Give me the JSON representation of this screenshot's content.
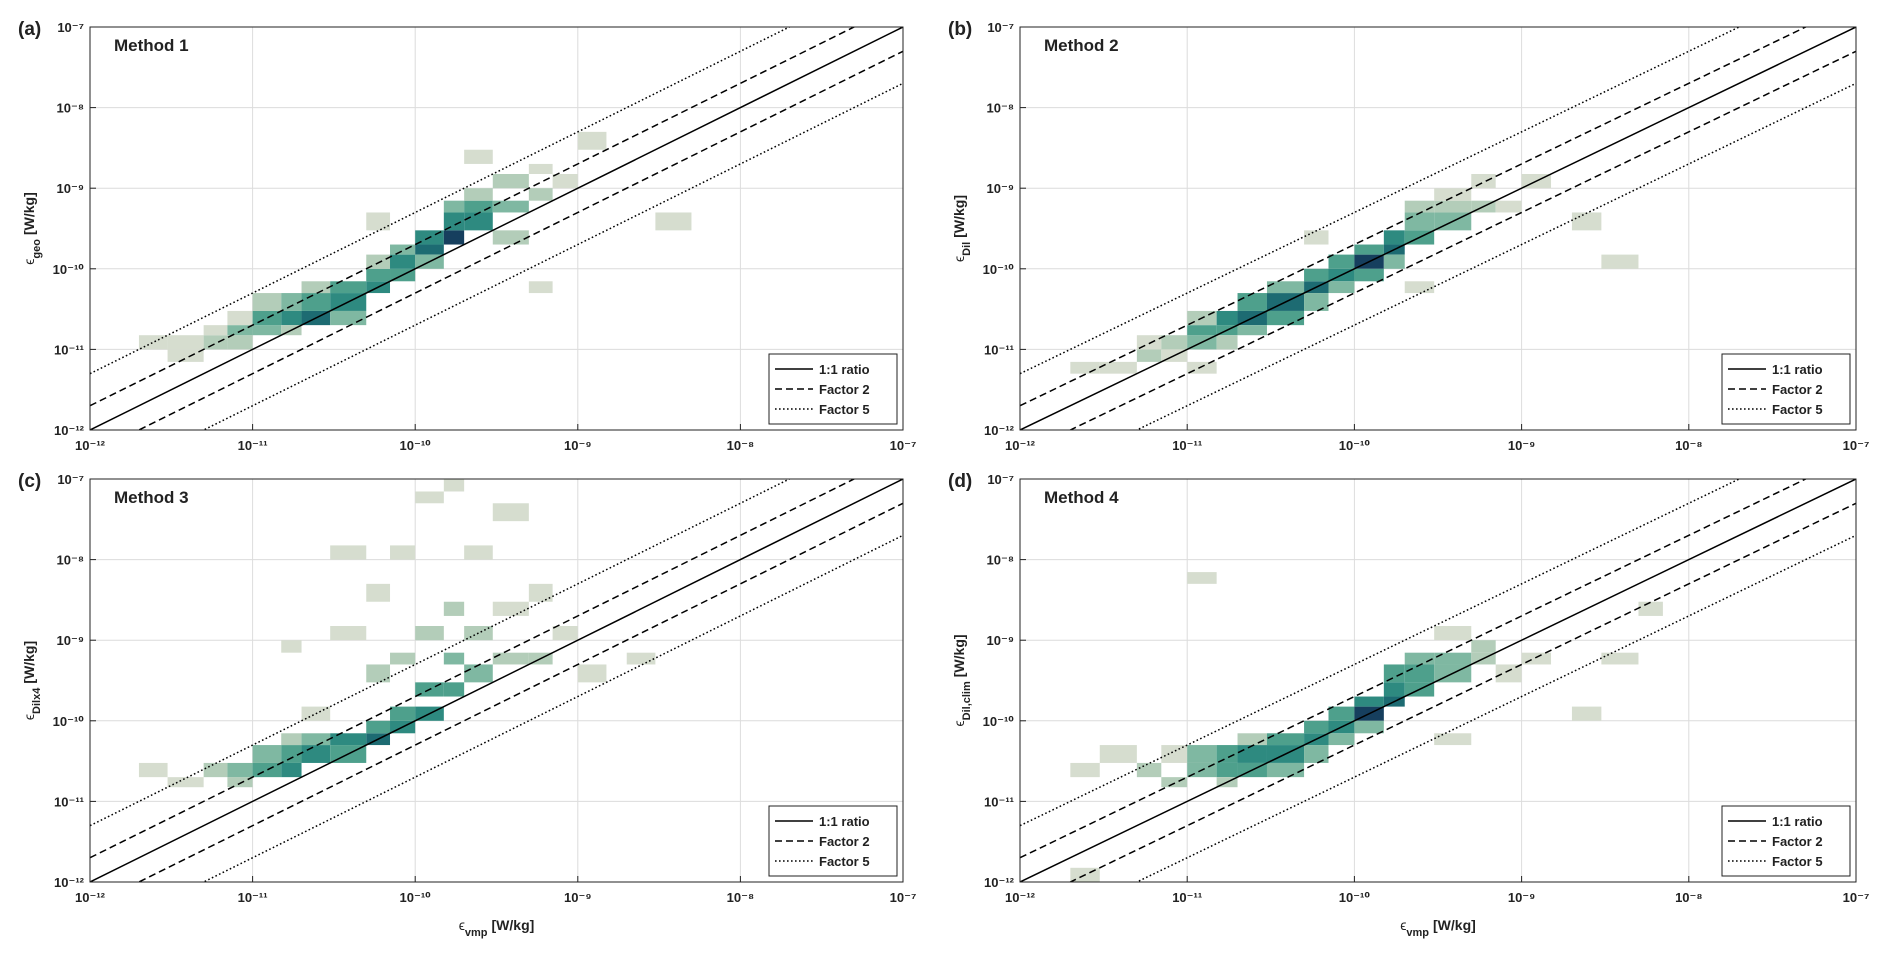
{
  "chart_data": [
    {
      "type": "hist2d",
      "panel_label": "(a)",
      "title": "Method 1",
      "ylabel": {
        "symbol": "ϵ",
        "subscript": "geo",
        "unit": "[W/kg]"
      },
      "xlim": [
        1e-12,
        1e-07
      ],
      "ylim": [
        1e-12,
        1e-07
      ],
      "log_x": true,
      "log_y": true,
      "grid": true,
      "legend": "lower right",
      "xticks": [
        {
          "value": 1e-12,
          "label": "10⁻¹²"
        },
        {
          "value": 1e-11,
          "label": "10⁻¹¹"
        },
        {
          "value": 1e-10,
          "label": "10⁻¹⁰"
        },
        {
          "value": 1e-09,
          "label": "10⁻⁹"
        },
        {
          "value": 1e-08,
          "label": "10⁻⁸"
        },
        {
          "value": 1e-07,
          "label": "10⁻⁷"
        }
      ],
      "yticks": [
        {
          "value": 1e-12,
          "label": "10⁻¹²"
        },
        {
          "value": 1e-11,
          "label": "10⁻¹¹"
        },
        {
          "value": 1e-10,
          "label": "10⁻¹⁰"
        },
        {
          "value": 1e-09,
          "label": "10⁻⁹"
        },
        {
          "value": 1e-08,
          "label": "10⁻⁸"
        },
        {
          "value": 1e-07,
          "label": "10⁻⁷"
        }
      ],
      "bin_edges": [
        1e-12,
        1.5e-12,
        2e-12,
        3e-12,
        5e-12,
        7e-12,
        1e-11,
        1.5e-11,
        2e-11,
        3e-11,
        5e-11,
        7e-11,
        1e-10,
        1.5e-10,
        2e-10,
        3e-10,
        5e-10,
        7e-10,
        1e-09,
        1.5e-09,
        2e-09,
        3e-09,
        5e-09,
        7e-09,
        1e-08,
        1.5e-08,
        2e-08,
        3e-08,
        5e-08,
        7e-08,
        1e-07
      ],
      "cells": {
        "x": [
          3e-12,
          3e-12,
          5e-12,
          5e-12,
          7e-12,
          7e-12,
          7e-12,
          1e-11,
          1e-11,
          1e-11,
          1.5e-11,
          1.5e-11,
          1.5e-11,
          2e-11,
          2e-11,
          2e-11,
          3e-11,
          3e-11,
          3e-11,
          5e-11,
          5e-11,
          5e-11,
          7e-11,
          7e-11,
          7e-11,
          1e-10,
          1e-10,
          1e-10,
          1.5e-10,
          1.5e-10,
          1.5e-10,
          2e-10,
          2e-10,
          2e-10,
          3e-10,
          3e-10,
          3e-10,
          5e-10,
          5e-10,
          7e-10,
          1e-09,
          2e-10,
          5e-11,
          5e-10,
          3e-09,
          2e-12
        ],
        "y": [
          7e-12,
          1e-11,
          1e-11,
          1.5e-11,
          1e-11,
          1.5e-11,
          2e-11,
          1.5e-11,
          2e-11,
          3e-11,
          2e-11,
          3e-11,
          1.5e-11,
          2e-11,
          3e-11,
          5e-11,
          3e-11,
          5e-11,
          2e-11,
          5e-11,
          7e-11,
          1e-10,
          7e-11,
          1e-10,
          1.5e-10,
          1.5e-10,
          2e-10,
          1e-10,
          2e-10,
          3e-10,
          5e-10,
          3e-10,
          5e-10,
          7e-10,
          5e-10,
          1e-09,
          2e-10,
          7e-10,
          1.5e-09,
          1e-09,
          3e-09,
          2e-09,
          3e-10,
          5e-11,
          3e-10,
          1e-11
        ],
        "counts": [
          1,
          1,
          2,
          1,
          2,
          3,
          1,
          3,
          4,
          2,
          5,
          3,
          2,
          6,
          4,
          2,
          5,
          4,
          3,
          5,
          4,
          2,
          4,
          5,
          3,
          6,
          5,
          3,
          7,
          5,
          3,
          5,
          4,
          2,
          3,
          2,
          2,
          2,
          1,
          1,
          1,
          1,
          1,
          1,
          1,
          1
        ]
      },
      "reference_lines": [
        {
          "name": "1:1 ratio",
          "style": "solid",
          "factors": [
            1
          ]
        },
        {
          "name": "Factor 2",
          "style": "dashed",
          "factors": [
            2,
            0.5
          ]
        },
        {
          "name": "Factor 5",
          "style": "dotted",
          "factors": [
            5,
            0.2
          ]
        }
      ]
    },
    {
      "type": "hist2d",
      "panel_label": "(b)",
      "title": "Method 2",
      "ylabel": {
        "symbol": "ϵ",
        "subscript": "Dil",
        "unit": "[W/kg]"
      },
      "xlim": [
        1e-12,
        1e-07
      ],
      "ylim": [
        1e-12,
        1e-07
      ],
      "log_x": true,
      "log_y": true,
      "grid": true,
      "legend": "lower right",
      "xticks": [
        {
          "value": 1e-12,
          "label": "10⁻¹²"
        },
        {
          "value": 1e-11,
          "label": "10⁻¹¹"
        },
        {
          "value": 1e-10,
          "label": "10⁻¹⁰"
        },
        {
          "value": 1e-09,
          "label": "10⁻⁹"
        },
        {
          "value": 1e-08,
          "label": "10⁻⁸"
        },
        {
          "value": 1e-07,
          "label": "10⁻⁷"
        }
      ],
      "yticks": [
        {
          "value": 1e-12,
          "label": "10⁻¹²"
        },
        {
          "value": 1e-11,
          "label": "10⁻¹¹"
        },
        {
          "value": 1e-10,
          "label": "10⁻¹⁰"
        },
        {
          "value": 1e-09,
          "label": "10⁻⁹"
        },
        {
          "value": 1e-08,
          "label": "10⁻⁸"
        },
        {
          "value": 1e-07,
          "label": "10⁻⁷"
        }
      ],
      "bin_edges": [
        1e-12,
        1.5e-12,
        2e-12,
        3e-12,
        5e-12,
        7e-12,
        1e-11,
        1.5e-11,
        2e-11,
        3e-11,
        5e-11,
        7e-11,
        1e-10,
        1.5e-10,
        2e-10,
        3e-10,
        5e-10,
        7e-10,
        1e-09,
        1.5e-09,
        2e-09,
        3e-09,
        5e-09,
        7e-09,
        1e-08,
        1.5e-08,
        2e-08,
        3e-08,
        5e-08,
        7e-08,
        1e-07
      ],
      "cells": {
        "x": [
          3e-12,
          5e-12,
          5e-12,
          7e-12,
          7e-12,
          1e-11,
          1e-11,
          1e-11,
          1.5e-11,
          1.5e-11,
          1.5e-11,
          2e-11,
          2e-11,
          2e-11,
          3e-11,
          3e-11,
          3e-11,
          5e-11,
          5e-11,
          5e-11,
          7e-11,
          7e-11,
          7e-11,
          1e-10,
          1e-10,
          1e-10,
          1.5e-10,
          1.5e-10,
          1.5e-10,
          2e-10,
          2e-10,
          2e-10,
          3e-10,
          3e-10,
          3e-10,
          5e-10,
          5e-10,
          7e-10,
          1e-09,
          2e-09,
          3e-09,
          5e-11,
          2e-10,
          1e-11,
          2e-12
        ],
        "y": [
          5e-12,
          7e-12,
          1e-11,
          1e-11,
          7e-12,
          1e-11,
          1.5e-11,
          2e-11,
          1.5e-11,
          2e-11,
          1e-11,
          2e-11,
          3e-11,
          1.5e-11,
          3e-11,
          5e-11,
          2e-11,
          5e-11,
          3e-11,
          7e-11,
          7e-11,
          1e-10,
          5e-11,
          1e-10,
          1.5e-10,
          7e-11,
          1.5e-10,
          2e-10,
          1e-10,
          2e-10,
          3e-10,
          5e-10,
          3e-10,
          5e-10,
          7e-10,
          5e-10,
          1e-09,
          5e-10,
          1e-09,
          3e-10,
          1e-10,
          2e-10,
          5e-11,
          5e-12,
          5e-12
        ],
        "counts": [
          1,
          2,
          1,
          2,
          1,
          3,
          4,
          2,
          4,
          5,
          2,
          6,
          4,
          3,
          6,
          3,
          4,
          6,
          3,
          4,
          5,
          4,
          3,
          7,
          4,
          4,
          6,
          5,
          3,
          4,
          3,
          2,
          3,
          2,
          1,
          2,
          1,
          1,
          1,
          1,
          1,
          1,
          1,
          1,
          1
        ]
      },
      "reference_lines": [
        {
          "name": "1:1 ratio",
          "style": "solid",
          "factors": [
            1
          ]
        },
        {
          "name": "Factor 2",
          "style": "dashed",
          "factors": [
            2,
            0.5
          ]
        },
        {
          "name": "Factor 5",
          "style": "dotted",
          "factors": [
            5,
            0.2
          ]
        }
      ]
    },
    {
      "type": "hist2d",
      "panel_label": "(c)",
      "title": "Method 3",
      "ylabel": {
        "symbol": "ϵ",
        "subscript": "Dilx4",
        "unit": "[W/kg]"
      },
      "xlabel": {
        "symbol": "ϵ",
        "subscript": "vmp",
        "unit": "[W/kg]"
      },
      "xlim": [
        1e-12,
        1e-07
      ],
      "ylim": [
        1e-12,
        1e-07
      ],
      "log_x": true,
      "log_y": true,
      "grid": true,
      "legend": "lower right",
      "xticks": [
        {
          "value": 1e-12,
          "label": "10⁻¹²"
        },
        {
          "value": 1e-11,
          "label": "10⁻¹¹"
        },
        {
          "value": 1e-10,
          "label": "10⁻¹⁰"
        },
        {
          "value": 1e-09,
          "label": "10⁻⁹"
        },
        {
          "value": 1e-08,
          "label": "10⁻⁸"
        },
        {
          "value": 1e-07,
          "label": "10⁻⁷"
        }
      ],
      "yticks": [
        {
          "value": 1e-12,
          "label": "10⁻¹²"
        },
        {
          "value": 1e-11,
          "label": "10⁻¹¹"
        },
        {
          "value": 1e-10,
          "label": "10⁻¹⁰"
        },
        {
          "value": 1e-09,
          "label": "10⁻⁹"
        },
        {
          "value": 1e-08,
          "label": "10⁻⁸"
        },
        {
          "value": 1e-07,
          "label": "10⁻⁷"
        }
      ],
      "bin_edges": [
        1e-12,
        1.5e-12,
        2e-12,
        3e-12,
        5e-12,
        7e-12,
        1e-11,
        1.5e-11,
        2e-11,
        3e-11,
        5e-11,
        7e-11,
        1e-10,
        1.5e-10,
        2e-10,
        3e-10,
        5e-10,
        7e-10,
        1e-09,
        1.5e-09,
        2e-09,
        3e-09,
        5e-09,
        7e-09,
        1e-08,
        1.5e-08,
        2e-08,
        3e-08,
        5e-08,
        7e-08,
        1e-07
      ],
      "cells": {
        "x": [
          2e-12,
          3e-12,
          5e-12,
          7e-12,
          7e-12,
          1e-11,
          1e-11,
          1.5e-11,
          1.5e-11,
          1.5e-11,
          2e-11,
          2e-11,
          2e-11,
          3e-11,
          3e-11,
          3e-11,
          5e-11,
          5e-11,
          5e-11,
          5e-11,
          7e-11,
          7e-11,
          7e-11,
          7e-11,
          1e-10,
          1e-10,
          1e-10,
          1e-10,
          1.5e-10,
          1.5e-10,
          1.5e-10,
          1.5e-10,
          2e-10,
          2e-10,
          2e-10,
          3e-10,
          3e-10,
          3e-10,
          5e-10,
          5e-10,
          7e-10,
          1e-09,
          2e-09,
          3e-11,
          1.5e-11
        ],
        "y": [
          2e-11,
          1.5e-11,
          2e-11,
          1.5e-11,
          2e-11,
          2e-11,
          3e-11,
          2e-11,
          3e-11,
          5e-11,
          3e-11,
          5e-11,
          1e-10,
          5e-11,
          3e-11,
          1e-09,
          5e-11,
          7e-11,
          3e-10,
          3e-09,
          7e-11,
          1e-10,
          5e-10,
          1e-08,
          1e-10,
          2e-10,
          1e-09,
          5e-08,
          2e-10,
          5e-10,
          2e-09,
          7e-08,
          3e-10,
          1e-09,
          1e-08,
          5e-10,
          2e-09,
          3e-08,
          5e-10,
          3e-09,
          1e-09,
          3e-10,
          5e-10,
          1e-08,
          7e-10
        ],
        "counts": [
          1,
          1,
          2,
          2,
          3,
          4,
          3,
          5,
          4,
          2,
          5,
          3,
          1,
          5,
          4,
          1,
          6,
          4,
          2,
          1,
          5,
          4,
          2,
          1,
          5,
          4,
          2,
          1,
          4,
          3,
          2,
          1,
          3,
          2,
          1,
          2,
          1,
          1,
          2,
          1,
          1,
          1,
          1,
          1,
          1
        ]
      },
      "reference_lines": [
        {
          "name": "1:1 ratio",
          "style": "solid",
          "factors": [
            1
          ]
        },
        {
          "name": "Factor 2",
          "style": "dashed",
          "factors": [
            2,
            0.5
          ]
        },
        {
          "name": "Factor 5",
          "style": "dotted",
          "factors": [
            5,
            0.2
          ]
        }
      ]
    },
    {
      "type": "hist2d",
      "panel_label": "(d)",
      "title": "Method 4",
      "ylabel": {
        "symbol": "ϵ",
        "subscript": "Dil,clim",
        "unit": "[W/kg]"
      },
      "xlabel": {
        "symbol": "ϵ",
        "subscript": "vmp",
        "unit": "[W/kg]"
      },
      "xlim": [
        1e-12,
        1e-07
      ],
      "ylim": [
        1e-12,
        1e-07
      ],
      "log_x": true,
      "log_y": true,
      "grid": true,
      "legend": "lower right",
      "xticks": [
        {
          "value": 1e-12,
          "label": "10⁻¹²"
        },
        {
          "value": 1e-11,
          "label": "10⁻¹¹"
        },
        {
          "value": 1e-10,
          "label": "10⁻¹⁰"
        },
        {
          "value": 1e-09,
          "label": "10⁻⁹"
        },
        {
          "value": 1e-08,
          "label": "10⁻⁸"
        },
        {
          "value": 1e-07,
          "label": "10⁻⁷"
        }
      ],
      "yticks": [
        {
          "value": 1e-12,
          "label": "10⁻¹²"
        },
        {
          "value": 1e-11,
          "label": "10⁻¹¹"
        },
        {
          "value": 1e-10,
          "label": "10⁻¹⁰"
        },
        {
          "value": 1e-09,
          "label": "10⁻⁹"
        },
        {
          "value": 1e-08,
          "label": "10⁻⁸"
        },
        {
          "value": 1e-07,
          "label": "10⁻⁷"
        }
      ],
      "bin_edges": [
        1e-12,
        1.5e-12,
        2e-12,
        3e-12,
        5e-12,
        7e-12,
        1e-11,
        1.5e-11,
        2e-11,
        3e-11,
        5e-11,
        7e-11,
        1e-10,
        1.5e-10,
        2e-10,
        3e-10,
        5e-10,
        7e-10,
        1e-09,
        1.5e-09,
        2e-09,
        3e-09,
        5e-09,
        7e-09,
        1e-08,
        1.5e-08,
        2e-08,
        3e-08,
        5e-08,
        7e-08,
        1e-07
      ],
      "cells": {
        "x": [
          2e-12,
          3e-12,
          5e-12,
          7e-12,
          7e-12,
          1e-11,
          1e-11,
          1.5e-11,
          1.5e-11,
          1.5e-11,
          2e-11,
          2e-11,
          2e-11,
          3e-11,
          3e-11,
          3e-11,
          5e-11,
          5e-11,
          5e-11,
          7e-11,
          7e-11,
          7e-11,
          1e-10,
          1e-10,
          1e-10,
          1.5e-10,
          1.5e-10,
          1.5e-10,
          2e-10,
          2e-10,
          2e-10,
          3e-10,
          3e-10,
          3e-10,
          5e-10,
          5e-10,
          7e-10,
          1e-09,
          2e-09,
          3e-09,
          5e-09,
          1e-11,
          3e-10,
          2e-12
        ],
        "y": [
          2e-11,
          3e-11,
          2e-11,
          1.5e-11,
          3e-11,
          2e-11,
          3e-11,
          2e-11,
          3e-11,
          1.5e-11,
          3e-11,
          2e-11,
          5e-11,
          3e-11,
          5e-11,
          2e-11,
          5e-11,
          7e-11,
          3e-11,
          7e-11,
          1e-10,
          5e-11,
          1e-10,
          1.5e-10,
          7e-11,
          1.5e-10,
          2e-10,
          3e-10,
          2e-10,
          3e-10,
          5e-10,
          5e-10,
          3e-10,
          1e-09,
          5e-10,
          7e-10,
          3e-10,
          5e-10,
          1e-10,
          5e-10,
          2e-09,
          5e-09,
          5e-11,
          1e-12
        ],
        "counts": [
          1,
          1,
          2,
          2,
          1,
          3,
          3,
          4,
          4,
          2,
          5,
          4,
          2,
          5,
          4,
          3,
          5,
          4,
          3,
          5,
          4,
          3,
          7,
          5,
          3,
          6,
          5,
          4,
          4,
          4,
          3,
          3,
          3,
          1,
          2,
          2,
          1,
          1,
          1,
          1,
          1,
          1,
          1,
          1
        ]
      },
      "reference_lines": [
        {
          "name": "1:1 ratio",
          "style": "solid",
          "factors": [
            1
          ]
        },
        {
          "name": "Factor 2",
          "style": "dashed",
          "factors": [
            2,
            0.5
          ]
        },
        {
          "name": "Factor 5",
          "style": "dotted",
          "factors": [
            5,
            0.2
          ]
        }
      ]
    }
  ]
}
